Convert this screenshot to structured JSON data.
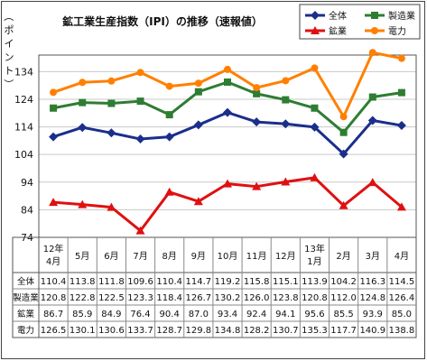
{
  "chart_data": {
    "type": "line",
    "title": "鉱工業生産指数（IPI）の推移（速報値）",
    "ylabel": "（ポイント）",
    "ylim": [
      74,
      140
    ],
    "yticks": [
      74,
      84,
      94,
      104,
      114,
      124,
      134
    ],
    "categories": [
      "12年4月",
      "5月",
      "6月",
      "7月",
      "8月",
      "9月",
      "10月",
      "11月",
      "12月",
      "13年1月",
      "2月",
      "3月",
      "4月"
    ],
    "category_lines": [
      [
        "12年",
        "4月"
      ],
      [
        "5月"
      ],
      [
        "6月"
      ],
      [
        "7月"
      ],
      [
        "8月"
      ],
      [
        "9月"
      ],
      [
        "10月"
      ],
      [
        "11月"
      ],
      [
        "12月"
      ],
      [
        "13年",
        "1月"
      ],
      [
        "2月"
      ],
      [
        "3月"
      ],
      [
        "4月"
      ]
    ],
    "series": [
      {
        "name": "全体",
        "table_label": "全体",
        "color": "#1a2e8c",
        "marker": "diamond",
        "values": [
          110.4,
          113.8,
          111.8,
          109.6,
          110.4,
          114.7,
          119.2,
          115.8,
          115.1,
          113.9,
          104.2,
          116.3,
          114.5
        ]
      },
      {
        "name": "製造業",
        "table_label": "製造業",
        "color": "#2e7d32",
        "marker": "square",
        "values": [
          120.8,
          122.8,
          122.5,
          123.3,
          118.4,
          126.7,
          130.2,
          126.0,
          123.8,
          120.8,
          112.0,
          124.8,
          126.4
        ]
      },
      {
        "name": "鉱業",
        "table_label": "鉱業",
        "color": "#e01010",
        "marker": "triangle",
        "values": [
          86.7,
          85.9,
          84.9,
          76.4,
          90.4,
          87.0,
          93.4,
          92.4,
          94.1,
          95.6,
          85.5,
          93.9,
          85.0
        ]
      },
      {
        "name": "電力",
        "table_label": "電力",
        "color": "#ff8000",
        "marker": "circle",
        "values": [
          126.5,
          130.1,
          130.6,
          133.7,
          128.7,
          129.8,
          134.8,
          128.2,
          130.7,
          135.3,
          117.7,
          140.9,
          138.8
        ]
      }
    ],
    "legend_position": "top-right",
    "grid": true
  }
}
